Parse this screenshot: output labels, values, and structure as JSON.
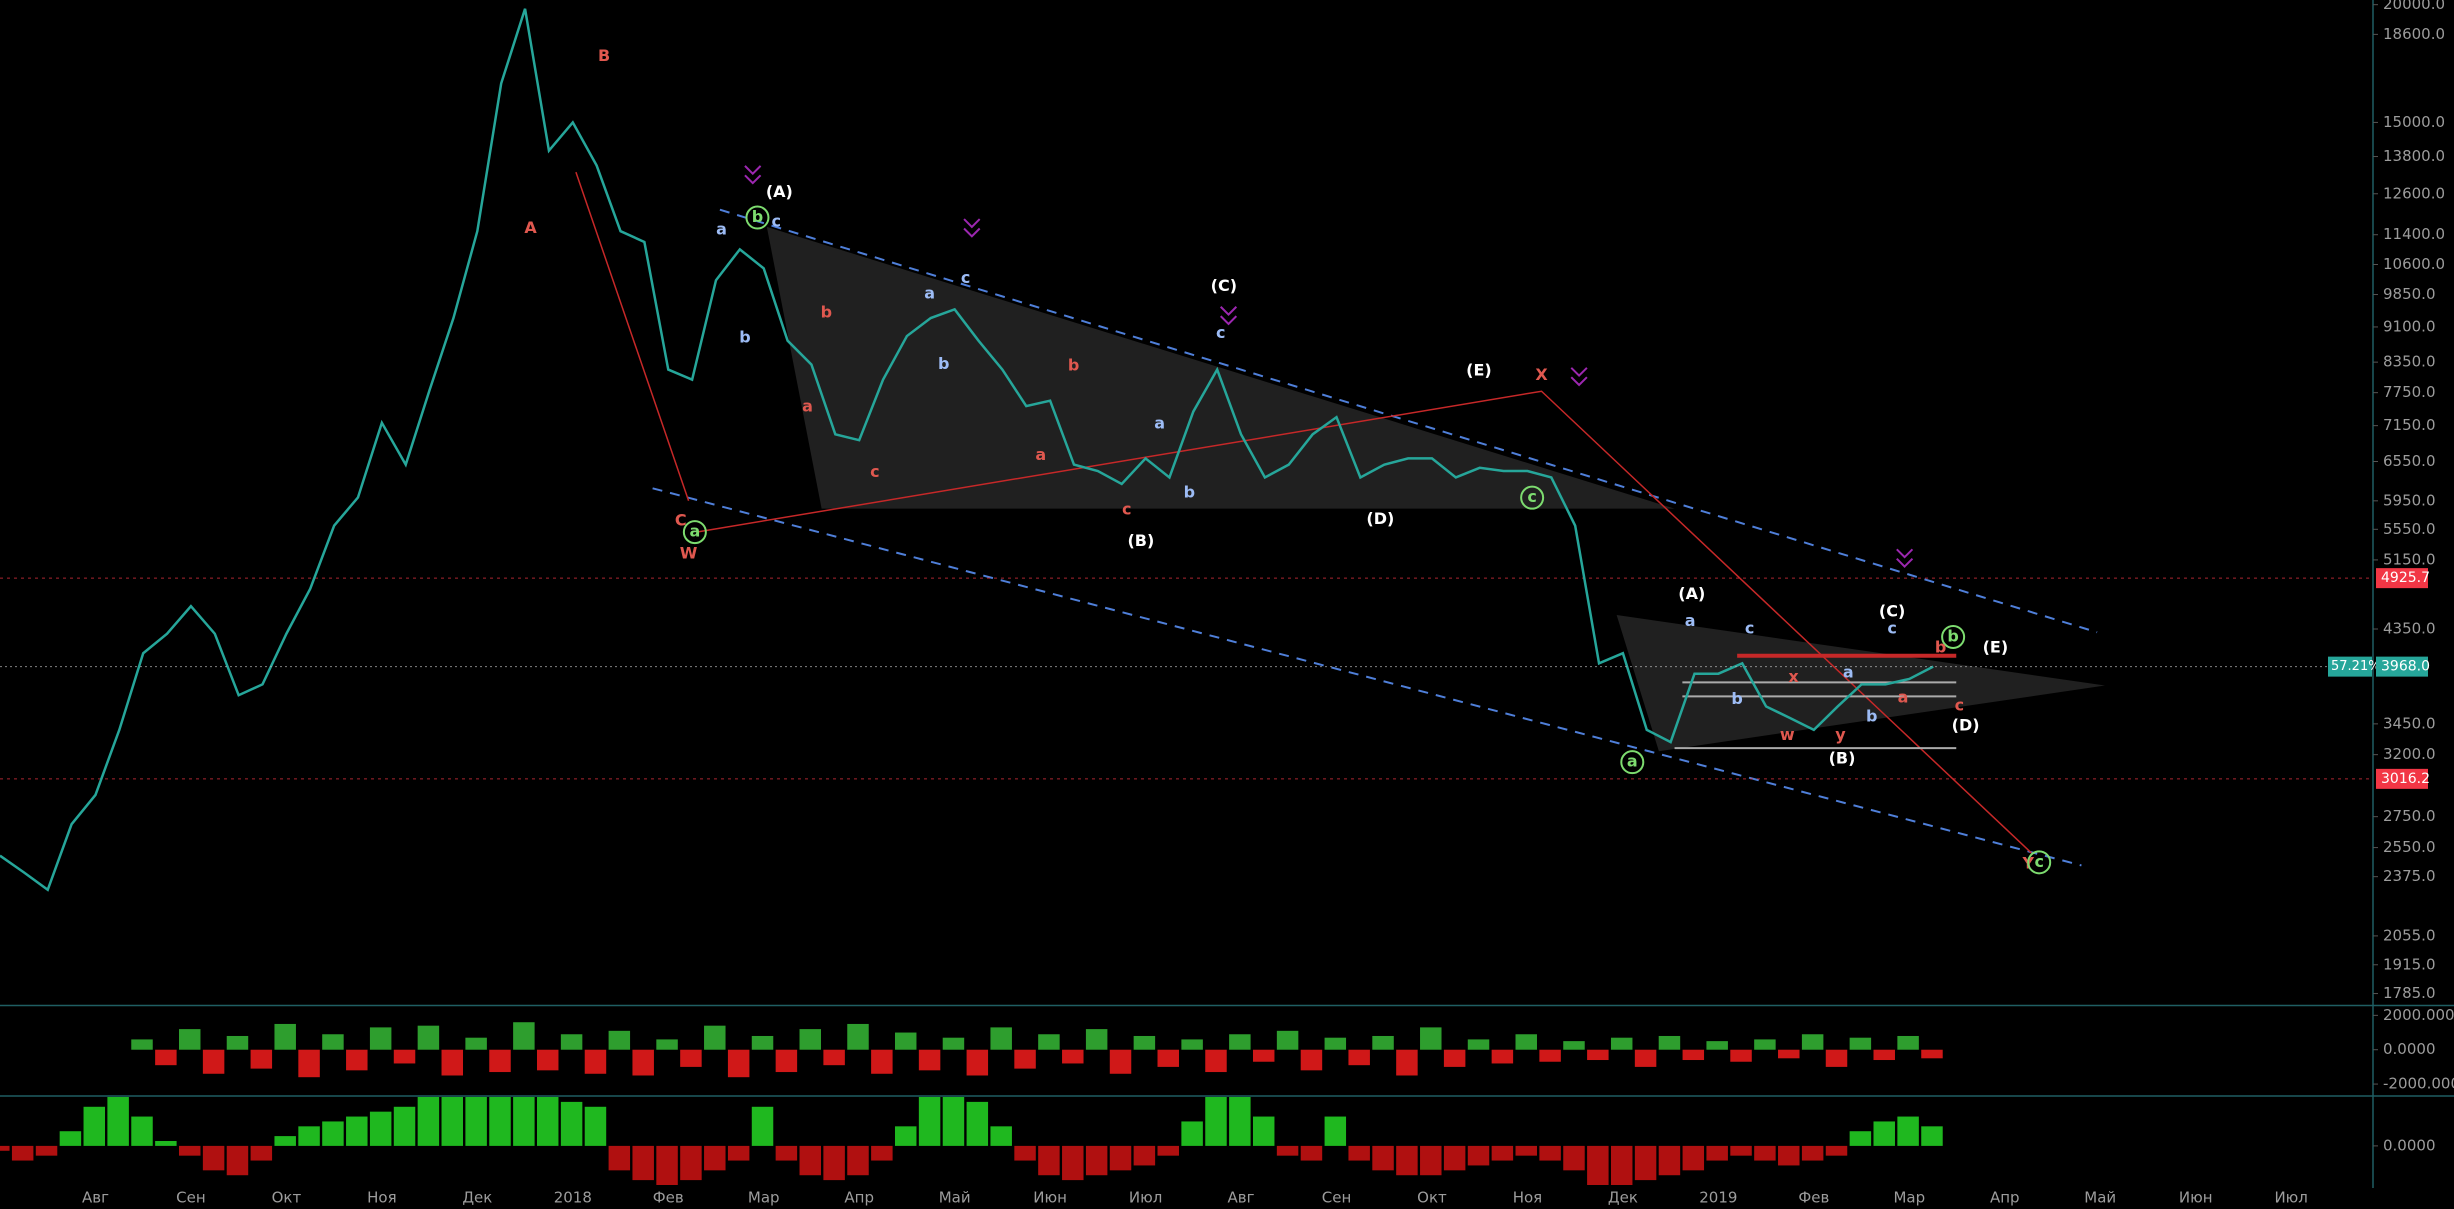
{
  "chart_data": [
    {
      "type": "line",
      "log_scale": true,
      "grid": false,
      "categories": [
        null,
        null,
        null,
        null,
        "Авг",
        null,
        null,
        null,
        "Сен",
        null,
        null,
        null,
        "Окт",
        null,
        null,
        null,
        "Ноя",
        null,
        null,
        null,
        "Дек",
        null,
        null,
        null,
        "2018",
        null,
        null,
        null,
        "Фев",
        null,
        null,
        null,
        "Мар",
        null,
        null,
        null,
        "Апр",
        null,
        null,
        null,
        "Май",
        null,
        null,
        null,
        "Июн",
        null,
        null,
        null,
        "Июл",
        null,
        null,
        null,
        "Авг",
        null,
        null,
        null,
        "Сен",
        null,
        null,
        null,
        "Окт",
        null,
        null,
        null,
        "Ноя",
        null,
        null,
        null,
        "Дек",
        null,
        null,
        null,
        "2019",
        null,
        null,
        null,
        "Фев",
        null,
        null,
        null,
        "Мар",
        null,
        null,
        null,
        "Апр",
        null,
        null,
        null,
        "Май",
        null,
        null,
        null,
        "Июн",
        null,
        null,
        null,
        "Июл",
        null,
        null,
        null
      ],
      "series": [
        {
          "name": "BTC",
          "color": "#26a69a",
          "values": [
            2500,
            2400,
            2300,
            2700,
            2900,
            3400,
            4100,
            4300,
            4600,
            4300,
            3700,
            3800,
            4300,
            4800,
            5600,
            6000,
            7200,
            6500,
            7800,
            9300,
            11500,
            16500,
            19800,
            14000,
            15000,
            13500,
            11500,
            11200,
            8200,
            8000,
            10200,
            11000,
            10500,
            8800,
            8300,
            7000,
            6900,
            8000,
            8900,
            9300,
            9500,
            8800,
            8200,
            7500,
            7600,
            6500,
            6400,
            6200,
            6600,
            6300,
            7400,
            8200,
            7000,
            6300,
            6500,
            7000,
            7300,
            6300,
            6500,
            6600,
            6600,
            6300,
            6450,
            6400,
            6400,
            6300,
            5600,
            4000,
            4100,
            3400,
            3300,
            3900,
            3900,
            4000,
            3600,
            3500,
            3400,
            3600,
            3800,
            3800,
            3850,
            3968,
            null,
            null,
            null,
            null,
            null,
            null,
            null,
            null,
            null,
            null,
            null,
            null,
            null,
            null,
            null,
            null,
            null,
            null
          ]
        }
      ],
      "ylim": [
        1737,
        20230
      ],
      "yticks": [
        {
          "value": 20000,
          "label": "20000.0"
        },
        {
          "value": 18600,
          "label": "18600.0"
        },
        {
          "value": 15000,
          "label": "15000.0"
        },
        {
          "value": 13800,
          "label": "13800.0"
        },
        {
          "value": 12600,
          "label": "12600.0"
        },
        {
          "value": 11400,
          "label": "11400.0"
        },
        {
          "value": 10600,
          "label": "10600.0"
        },
        {
          "value": 9850,
          "label": "9850.0"
        },
        {
          "value": 9100,
          "label": "9100.0"
        },
        {
          "value": 8350,
          "label": "8350.0"
        },
        {
          "value": 7750,
          "label": "7750.0"
        },
        {
          "value": 7150,
          "label": "7150.0"
        },
        {
          "value": 6550,
          "label": "6550.0"
        },
        {
          "value": 5950,
          "label": "5950.0"
        },
        {
          "value": 5550,
          "label": "5550.0"
        },
        {
          "value": 5150,
          "label": "5150.0"
        },
        {
          "value": 4350,
          "label": "4350.0"
        },
        {
          "value": 3450,
          "label": "3450.0"
        },
        {
          "value": 3200,
          "label": "3200.0"
        },
        {
          "value": 2750,
          "label": "2750.0"
        },
        {
          "value": 2550,
          "label": "2550.0"
        },
        {
          "value": 2375,
          "label": "2375.0"
        },
        {
          "value": 2055,
          "label": "2055.0"
        },
        {
          "value": 1915,
          "label": "1915.0"
        },
        {
          "value": 1785,
          "label": "1785.0"
        }
      ],
      "levels": [
        4925.7,
        3016.2
      ],
      "level_color": "#f23645",
      "last_price": {
        "value": 3968,
        "label": "3968.0"
      },
      "last_color": "#26a69a",
      "last_percent": 57.21,
      "last_percent_label": "57.21%",
      "annotations": [
        {
          "text": "A",
          "color": "#e0584f"
        },
        {
          "text": "B",
          "color": "#e0584f"
        },
        {
          "text": "W",
          "color": "#e0584f"
        },
        {
          "text": "C",
          "color": "#e0584f"
        },
        {
          "text": "a",
          "color": "#7ddc6f",
          "circled": true
        },
        {
          "text": "(A)",
          "color": "#ffffff"
        },
        {
          "text": "b",
          "color": "#7ddc6f",
          "circled": true
        },
        {
          "text": "c",
          "color": "#9dbcf5"
        },
        {
          "text": "a",
          "color": "#9dbcf5"
        },
        {
          "text": "b",
          "color": "#9dbcf5"
        },
        {
          "text": "b",
          "color": "#e0584f"
        },
        {
          "text": "a",
          "color": "#e0584f"
        },
        {
          "text": "c",
          "color": "#e0584f"
        },
        {
          "text": "a",
          "color": "#9dbcf5"
        },
        {
          "text": "c",
          "color": "#9dbcf5"
        },
        {
          "text": "b",
          "color": "#9dbcf5"
        },
        {
          "text": "b",
          "color": "#e0584f"
        },
        {
          "text": "a",
          "color": "#e0584f"
        },
        {
          "text": "c",
          "color": "#e0584f"
        },
        {
          "text": "b",
          "color": "#9dbcf5"
        },
        {
          "text": "a",
          "color": "#9dbcf5"
        },
        {
          "text": "(B)",
          "color": "#ffffff"
        },
        {
          "text": "(C)",
          "color": "#ffffff"
        },
        {
          "text": "c",
          "color": "#9dbcf5"
        },
        {
          "text": "(E)",
          "color": "#ffffff"
        },
        {
          "text": "X",
          "color": "#e0584f"
        },
        {
          "text": "(D)",
          "color": "#ffffff"
        },
        {
          "text": "c",
          "color": "#7ddc6f",
          "circled": true
        },
        {
          "text": "(A)",
          "color": "#ffffff"
        },
        {
          "text": "a",
          "color": "#9dbcf5"
        },
        {
          "text": "c",
          "color": "#9dbcf5"
        },
        {
          "text": "b",
          "color": "#9dbcf5"
        },
        {
          "text": "x",
          "color": "#e0584f"
        },
        {
          "text": "w",
          "color": "#e0584f"
        },
        {
          "text": "y",
          "color": "#e0584f"
        },
        {
          "text": "a",
          "color": "#9dbcf5"
        },
        {
          "text": "b",
          "color": "#9dbcf5"
        },
        {
          "text": "(B)",
          "color": "#ffffff"
        },
        {
          "text": "(C)",
          "color": "#ffffff"
        },
        {
          "text": "c",
          "color": "#9dbcf5"
        },
        {
          "text": "b",
          "color": "#7ddc6f",
          "circled": true
        },
        {
          "text": "b",
          "color": "#e0584f"
        },
        {
          "text": "(E)",
          "color": "#ffffff"
        },
        {
          "text": "a",
          "color": "#e0584f"
        },
        {
          "text": "c",
          "color": "#e0584f"
        },
        {
          "text": "(D)",
          "color": "#ffffff"
        },
        {
          "text": "a",
          "color": "#7ddc6f",
          "circled": true
        },
        {
          "text": "Y",
          "color": "#e0584f"
        },
        {
          "text": "c",
          "color": "#7ddc6f",
          "circled": true
        }
      ]
    },
    {
      "type": "bar",
      "up_color": "#2e9e2e",
      "down_color": "#d01818",
      "values": [
        null,
        null,
        null,
        null,
        null,
        null,
        600,
        -900,
        1200,
        -1400,
        800,
        -1100,
        1500,
        -1600,
        900,
        -1200,
        1300,
        -800,
        1400,
        -1500,
        700,
        -1300,
        1600,
        -1200,
        900,
        -1400,
        1100,
        -1500,
        600,
        -1000,
        1400,
        -1600,
        800,
        -1300,
        1200,
        -900,
        1500,
        -1400,
        1000,
        -1200,
        700,
        -1500,
        1300,
        -1100,
        900,
        -800,
        1200,
        -1400,
        800,
        -1000,
        600,
        -1300,
        900,
        -700,
        1100,
        -1200,
        700,
        -900,
        800,
        -1500,
        1300,
        -1000,
        600,
        -800,
        900,
        -700,
        500,
        -600,
        700,
        -1000,
        800,
        -600,
        500,
        -700,
        600,
        -500,
        900,
        -1000,
        700,
        -600,
        800,
        -500,
        null,
        null,
        null,
        null,
        null,
        null,
        null,
        null,
        null,
        null,
        null,
        null,
        null,
        null,
        null,
        null,
        null,
        null
      ],
      "ylim": [
        -2636,
        2545
      ],
      "yticks": [
        {
          "value": 2000,
          "label": "2000.0000"
        },
        {
          "value": 0,
          "label": "0.0000"
        },
        {
          "value": -2000,
          "label": "-2000.0000"
        }
      ]
    },
    {
      "type": "bar",
      "up_color": "#1fb81f",
      "down_color": "#b01010",
      "values": [
        -0.1,
        -0.3,
        -0.2,
        0.3,
        0.8,
        1.0,
        0.6,
        0.1,
        -0.2,
        -0.5,
        -0.6,
        -0.3,
        0.2,
        0.4,
        0.5,
        0.6,
        0.7,
        0.8,
        1.0,
        1.0,
        1.0,
        1.0,
        1.0,
        1.0,
        0.9,
        0.8,
        -0.5,
        -0.7,
        -0.8,
        -0.7,
        -0.5,
        -0.3,
        0.8,
        -0.3,
        -0.6,
        -0.7,
        -0.6,
        -0.3,
        0.4,
        1.0,
        1.0,
        0.9,
        0.4,
        -0.3,
        -0.6,
        -0.7,
        -0.6,
        -0.5,
        -0.4,
        -0.2,
        0.5,
        1.0,
        1.0,
        0.6,
        -0.2,
        -0.3,
        0.6,
        -0.3,
        -0.5,
        -0.6,
        -0.6,
        -0.5,
        -0.4,
        -0.3,
        -0.2,
        -0.3,
        -0.5,
        -0.8,
        -0.8,
        -0.7,
        -0.6,
        -0.5,
        -0.3,
        -0.2,
        -0.3,
        -0.4,
        -0.3,
        -0.2,
        0.3,
        0.5,
        0.6,
        0.4,
        null,
        null,
        null,
        null,
        null,
        null,
        null,
        null,
        null,
        null,
        null,
        null,
        null,
        null,
        null,
        null,
        null,
        null
      ],
      "ylim": [
        -0.8,
        1.0
      ],
      "yticks": [
        {
          "value": 0,
          "label": "0.0000"
        }
      ]
    }
  ]
}
